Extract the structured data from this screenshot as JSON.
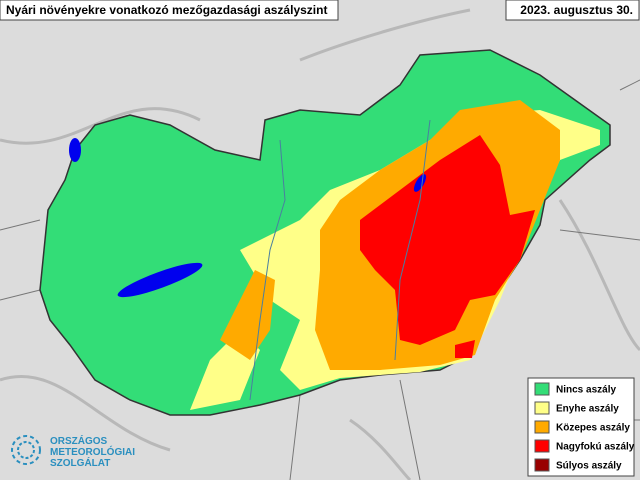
{
  "header": {
    "title": "Nyári növényekre vonatkozó mezőgazdasági aszályszint",
    "date": "2023. augusztus 30."
  },
  "legend": [
    {
      "label": "Nincs aszály",
      "color": "#33dd77"
    },
    {
      "label": "Enyhe aszály",
      "color": "#ffff88"
    },
    {
      "label": "Közepes aszály",
      "color": "#ffaa00"
    },
    {
      "label": "Nagyfokú aszály",
      "color": "#ff0000"
    },
    {
      "label": "Súlyos aszály",
      "color": "#990000"
    }
  ],
  "logo": [
    "ORSZÁGOS",
    "METEOROLÓGIAI",
    "SZOLGÁLAT"
  ]
}
